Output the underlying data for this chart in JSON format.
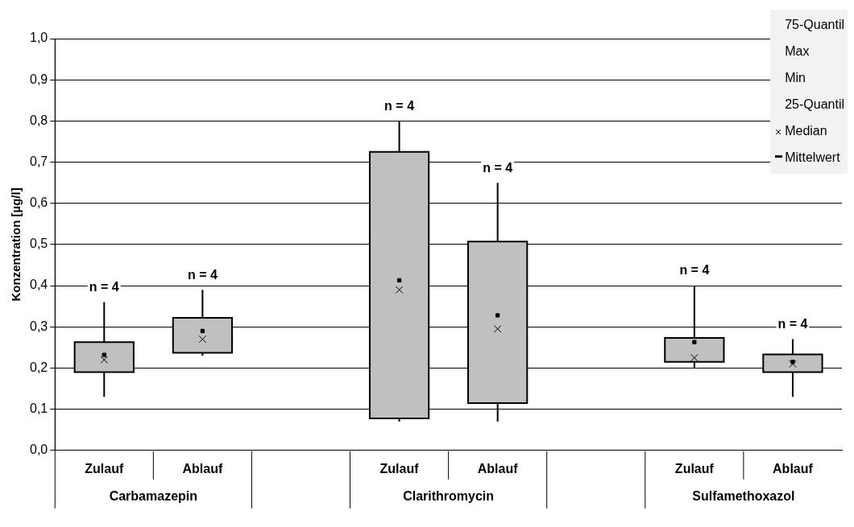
{
  "chart_data": {
    "type": "box",
    "categories": [
      "Zulauf",
      "Ablauf",
      null,
      "Zulauf",
      "Ablauf",
      null,
      "Zulauf",
      "Ablauf"
    ],
    "ylabel": "Konzentration [µg/l]",
    "ylim": [
      0,
      1
    ],
    "yticks": [
      {
        "value": 0,
        "label": "0,0"
      },
      {
        "value": 0.1,
        "label": "0,1"
      },
      {
        "value": 0.2,
        "label": "0,2"
      },
      {
        "value": 0.3,
        "label": "0,3"
      },
      {
        "value": 0.4,
        "label": "0,4"
      },
      {
        "value": 0.5,
        "label": "0,5"
      },
      {
        "value": 0.6,
        "label": "0,6"
      },
      {
        "value": 0.7,
        "label": "0,7"
      },
      {
        "value": 0.8,
        "label": "0,8"
      },
      {
        "value": 0.9,
        "label": "0,9"
      },
      {
        "value": 1,
        "label": "1,0"
      }
    ],
    "grid": "y",
    "series": [
      {
        "color": "#c0c0c0",
        "boxes": [
          {
            "low": 0.13,
            "q1": 0.19,
            "median": 0.22,
            "q3": 0.263,
            "high": 0.36,
            "mean": 0.232
          },
          {
            "low": 0.23,
            "q1": 0.237,
            "median": 0.27,
            "q3": 0.322,
            "high": 0.39,
            "mean": 0.29
          },
          null,
          {
            "low": 0.07,
            "q1": 0.078,
            "median": 0.39,
            "q3": 0.725,
            "high": 0.8,
            "mean": 0.413
          },
          {
            "low": 0.07,
            "q1": 0.115,
            "median": 0.295,
            "q3": 0.507,
            "high": 0.65,
            "mean": 0.328
          },
          null,
          {
            "low": 0.2,
            "q1": 0.215,
            "median": 0.225,
            "q3": 0.273,
            "high": 0.4,
            "mean": 0.263
          },
          {
            "low": 0.13,
            "q1": 0.19,
            "median": 0.21,
            "q3": 0.233,
            "high": 0.27,
            "mean": 0.215
          }
        ]
      }
    ],
    "annotations": [
      "Carbamazepin",
      "Clarithromycin",
      "Sulfamethoxazol",
      "75-Quantil",
      "Max",
      "Min",
      "25-Quantil",
      "Median",
      "Mittelwert",
      "n = 4",
      "n = 4",
      "n = 4",
      "n = 4",
      "n = 4",
      "n = 4"
    ]
  }
}
